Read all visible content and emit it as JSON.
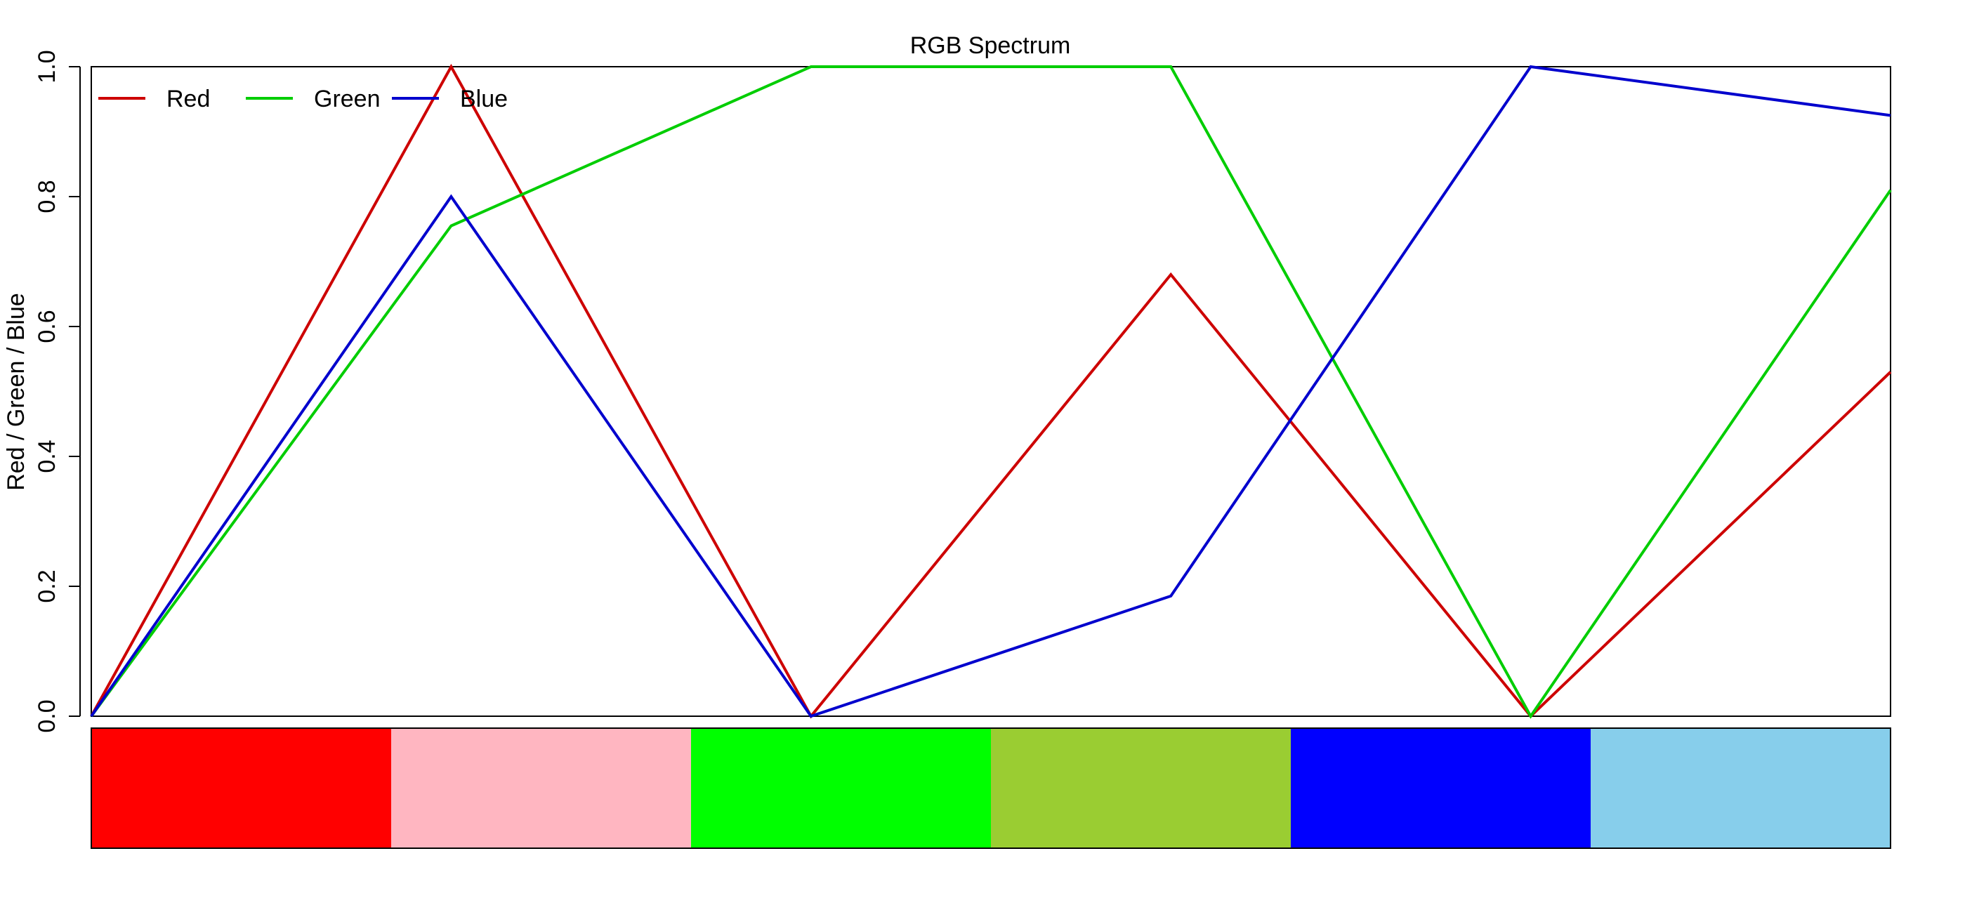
{
  "chart_data": {
    "type": "line",
    "title": "RGB Spectrum",
    "xlabel": "",
    "ylabel": "Red / Green / Blue",
    "ylim": [
      0,
      1
    ],
    "yticks": [
      "0.0",
      "0.2",
      "0.4",
      "0.6",
      "0.8",
      "1.0"
    ],
    "x": [
      0,
      1,
      2,
      3,
      4,
      5
    ],
    "series": [
      {
        "name": "Red",
        "color": "#CD0000",
        "values": [
          0,
          1.0,
          0,
          0.68,
          0,
          0.53
        ]
      },
      {
        "name": "Green",
        "color": "#00CD00",
        "values": [
          0,
          0.755,
          1.0,
          1.0,
          0,
          0.81
        ]
      },
      {
        "name": "Blue",
        "color": "#0000CD",
        "values": [
          0,
          0.8,
          0,
          0.185,
          1.0,
          0.925
        ]
      }
    ],
    "legend": {
      "position": "top-left",
      "entries": [
        "Red",
        "Green",
        "Blue"
      ]
    },
    "swatches": [
      "#FF0000",
      "#FFB6C1",
      "#00FF00",
      "#9ACD32",
      "#0000FF",
      "#87CEEB"
    ]
  }
}
